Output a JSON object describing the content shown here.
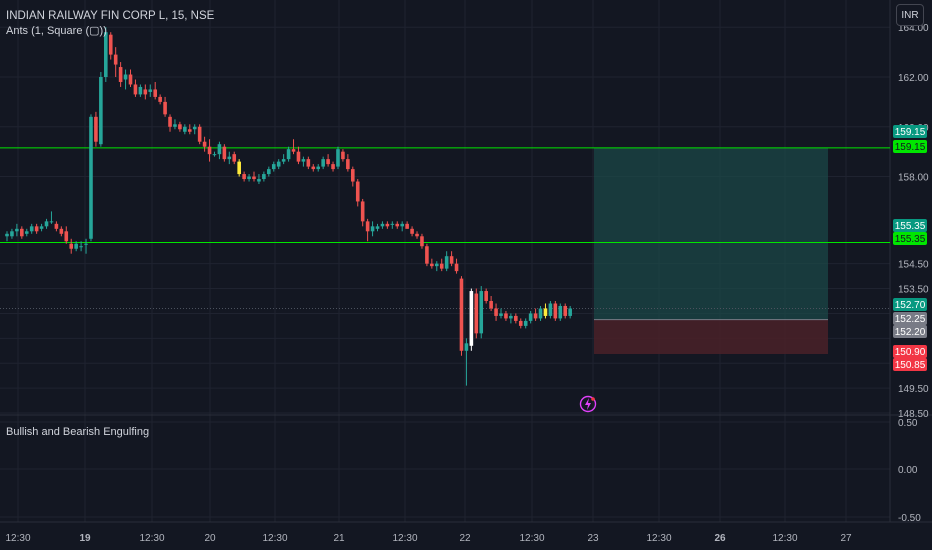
{
  "header": {
    "symbol_title": "INDIAN RAILWAY FIN CORP L, 15, NSE",
    "indicator_label": "Ants (1, Square (▢))",
    "currency_button": "INR"
  },
  "lower_pane": {
    "indicator_name": "Bullish and Bearish Engulfing",
    "axis_ticks": [
      "0.50",
      "0.00",
      "-0.50"
    ]
  },
  "price_axis": {
    "ticks": [
      "162.00",
      "160.00",
      "158.00",
      "154.50",
      "153.50",
      "149.50",
      "148.50"
    ],
    "top_partial_tick": "164.00"
  },
  "price_labels": [
    {
      "text": "159.15",
      "color": "#089981"
    },
    {
      "text": "159.15",
      "color": "#00e600"
    },
    {
      "text": "155.35",
      "color": "#089981"
    },
    {
      "text": "155.35",
      "color": "#00e600"
    },
    {
      "text": "152.70",
      "color": "#089981"
    },
    {
      "text": "152.25",
      "color": "#787b86"
    },
    {
      "text": "152.20",
      "color": "#787b86"
    },
    {
      "text": "150.90",
      "color": "#f23645"
    },
    {
      "text": "150.85",
      "color": "#f23645"
    }
  ],
  "time_axis": {
    "labels": [
      {
        "text": "12:30",
        "bold": false
      },
      {
        "text": "19",
        "bold": true
      },
      {
        "text": "12:30",
        "bold": false
      },
      {
        "text": "20",
        "bold": false
      },
      {
        "text": "12:30",
        "bold": false
      },
      {
        "text": "21",
        "bold": false
      },
      {
        "text": "12:30",
        "bold": false
      },
      {
        "text": "22",
        "bold": false
      },
      {
        "text": "12:30",
        "bold": false
      },
      {
        "text": "23",
        "bold": false
      },
      {
        "text": "12:30",
        "bold": false
      },
      {
        "text": "26",
        "bold": true
      },
      {
        "text": "12:30",
        "bold": false
      },
      {
        "text": "27",
        "bold": false
      }
    ]
  },
  "horizontal_lines": [
    159.15,
    155.35
  ],
  "position_tool": {
    "entry": 152.25,
    "target": 159.15,
    "stop": 150.87
  },
  "colors": {
    "background": "#131722",
    "up": "#26a69a",
    "down": "#ef5350",
    "highlight": "#ffeb3b",
    "engulf": "#ffffff",
    "level_line": "#00e600",
    "profit_zone": "#1b4a48",
    "loss_zone": "#4a2128",
    "alert_icon": "#e040fb"
  },
  "icons": {
    "alert": "lightning-alert-icon"
  },
  "candles": [
    [
      155.6,
      155.8,
      155.4,
      155.7
    ],
    [
      155.6,
      155.9,
      155.5,
      155.8
    ],
    [
      155.8,
      156.1,
      155.6,
      155.9
    ],
    [
      155.9,
      156.0,
      155.5,
      155.6
    ],
    [
      155.7,
      155.9,
      155.6,
      155.8
    ],
    [
      155.8,
      156.1,
      155.7,
      156.0
    ],
    [
      156.0,
      156.1,
      155.7,
      155.8
    ],
    [
      155.9,
      156.1,
      155.8,
      156.0
    ],
    [
      156.0,
      156.3,
      155.9,
      156.2
    ],
    [
      156.2,
      156.6,
      156.1,
      156.2
    ],
    [
      156.1,
      156.2,
      155.8,
      155.9
    ],
    [
      155.9,
      156.0,
      155.6,
      155.7
    ],
    [
      155.8,
      156.0,
      155.3,
      155.4
    ],
    [
      155.3,
      155.5,
      154.9,
      155.1
    ],
    [
      155.1,
      155.4,
      155.0,
      155.3
    ],
    [
      155.2,
      155.4,
      155.0,
      155.2
    ],
    [
      155.3,
      155.5,
      154.9,
      155.3
    ],
    [
      155.5,
      160.5,
      155.4,
      160.4
    ],
    [
      160.4,
      160.6,
      159.2,
      159.4
    ],
    [
      159.3,
      162.2,
      159.2,
      162.0
    ],
    [
      162.0,
      164.0,
      161.8,
      163.8
    ],
    [
      163.7,
      163.8,
      162.7,
      162.9
    ],
    [
      162.9,
      163.2,
      162.0,
      162.5
    ],
    [
      162.4,
      162.6,
      161.6,
      161.8
    ],
    [
      161.9,
      162.3,
      161.5,
      162.1
    ],
    [
      162.1,
      162.3,
      161.6,
      161.7
    ],
    [
      161.7,
      161.9,
      161.2,
      161.3
    ],
    [
      161.3,
      161.7,
      161.2,
      161.6
    ],
    [
      161.5,
      161.7,
      161.1,
      161.3
    ],
    [
      161.4,
      161.7,
      161.2,
      161.5
    ],
    [
      161.5,
      161.8,
      161.1,
      161.2
    ],
    [
      161.2,
      161.3,
      160.9,
      161.0
    ],
    [
      161.0,
      161.2,
      160.4,
      160.5
    ],
    [
      160.4,
      160.5,
      159.8,
      160.0
    ],
    [
      160.0,
      160.3,
      159.9,
      160.1
    ],
    [
      160.1,
      160.2,
      159.8,
      159.9
    ],
    [
      159.8,
      160.1,
      159.7,
      160.0
    ],
    [
      159.9,
      160.1,
      159.7,
      159.8
    ],
    [
      159.9,
      160.1,
      159.7,
      160.0
    ],
    [
      160.0,
      160.1,
      159.3,
      159.4
    ],
    [
      159.4,
      159.6,
      159.0,
      159.2
    ],
    [
      159.2,
      159.5,
      158.6,
      158.9
    ],
    [
      158.9,
      159.0,
      158.8,
      158.9
    ],
    [
      158.9,
      159.4,
      158.7,
      159.3
    ],
    [
      159.2,
      159.3,
      158.6,
      158.7
    ],
    [
      158.7,
      159.0,
      158.5,
      158.8
    ],
    [
      158.9,
      159.0,
      158.5,
      158.6
    ],
    [
      158.6,
      158.7,
      158.0,
      158.1
    ],
    [
      158.1,
      158.2,
      157.8,
      157.9
    ],
    [
      157.9,
      158.1,
      157.8,
      158.0
    ],
    [
      158.0,
      158.2,
      157.8,
      157.9
    ],
    [
      157.8,
      158.1,
      157.7,
      157.9
    ],
    [
      157.9,
      158.2,
      157.8,
      158.1
    ],
    [
      158.1,
      158.4,
      158.0,
      158.3
    ],
    [
      158.3,
      158.6,
      158.2,
      158.5
    ],
    [
      158.4,
      158.7,
      158.3,
      158.6
    ],
    [
      158.6,
      158.9,
      158.5,
      158.7
    ],
    [
      158.7,
      159.2,
      158.6,
      159.1
    ],
    [
      159.1,
      159.5,
      158.9,
      159.0
    ],
    [
      159.0,
      159.2,
      158.5,
      158.6
    ],
    [
      158.6,
      158.8,
      158.4,
      158.7
    ],
    [
      158.7,
      158.8,
      158.3,
      158.4
    ],
    [
      158.4,
      158.5,
      158.2,
      158.3
    ],
    [
      158.3,
      158.5,
      158.2,
      158.4
    ],
    [
      158.4,
      158.8,
      158.3,
      158.7
    ],
    [
      158.7,
      158.9,
      158.4,
      158.5
    ],
    [
      158.5,
      158.6,
      158.2,
      158.3
    ],
    [
      158.4,
      159.2,
      158.3,
      159.1
    ],
    [
      159.0,
      159.1,
      158.6,
      158.7
    ],
    [
      158.7,
      158.9,
      158.2,
      158.3
    ],
    [
      158.3,
      158.4,
      157.6,
      157.8
    ],
    [
      157.8,
      157.9,
      156.8,
      157.0
    ],
    [
      157.0,
      157.1,
      156.0,
      156.2
    ],
    [
      156.2,
      156.3,
      155.4,
      155.8
    ],
    [
      155.8,
      156.2,
      155.6,
      156.0
    ],
    [
      155.9,
      156.1,
      155.8,
      156.0
    ],
    [
      156.0,
      156.2,
      155.9,
      156.1
    ],
    [
      156.1,
      156.2,
      155.9,
      156.0
    ],
    [
      156.1,
      156.2,
      155.9,
      156.1
    ],
    [
      156.1,
      156.2,
      155.9,
      156.0
    ],
    [
      156.0,
      156.2,
      155.8,
      156.1
    ],
    [
      156.1,
      156.2,
      155.9,
      155.9
    ],
    [
      155.9,
      156.0,
      155.6,
      155.7
    ],
    [
      155.7,
      155.8,
      155.5,
      155.6
    ],
    [
      155.6,
      155.7,
      155.1,
      155.2
    ],
    [
      155.2,
      155.3,
      154.4,
      154.5
    ],
    [
      154.5,
      154.7,
      154.3,
      154.4
    ],
    [
      154.4,
      154.6,
      154.2,
      154.5
    ],
    [
      154.5,
      154.7,
      154.2,
      154.3
    ],
    [
      154.3,
      155.0,
      154.2,
      154.8
    ],
    [
      154.8,
      155.0,
      154.4,
      154.5
    ],
    [
      154.5,
      154.7,
      154.1,
      154.2
    ],
    [
      153.9,
      154.0,
      150.8,
      151.0
    ],
    [
      151.0,
      151.5,
      149.6,
      151.3
    ],
    [
      151.2,
      153.5,
      151.0,
      153.4
    ],
    [
      153.3,
      153.5,
      151.5,
      151.7
    ],
    [
      151.7,
      153.6,
      151.5,
      153.4
    ],
    [
      153.4,
      153.5,
      152.9,
      153.0
    ],
    [
      153.0,
      153.2,
      152.6,
      152.7
    ],
    [
      152.7,
      152.9,
      152.2,
      152.4
    ],
    [
      152.4,
      152.7,
      152.3,
      152.5
    ],
    [
      152.5,
      152.6,
      152.2,
      152.3
    ],
    [
      152.3,
      152.5,
      152.1,
      152.4
    ],
    [
      152.4,
      152.5,
      152.1,
      152.2
    ],
    [
      152.2,
      152.3,
      151.9,
      152.0
    ],
    [
      152.0,
      152.3,
      151.9,
      152.2
    ],
    [
      152.2,
      152.6,
      152.1,
      152.5
    ],
    [
      152.5,
      152.7,
      152.2,
      152.3
    ],
    [
      152.3,
      152.8,
      152.2,
      152.7
    ],
    [
      152.7,
      152.9,
      152.3,
      152.4
    ],
    [
      152.4,
      153.0,
      152.3,
      152.9
    ],
    [
      152.9,
      153.0,
      152.2,
      152.3
    ],
    [
      152.3,
      152.9,
      152.2,
      152.8
    ],
    [
      152.8,
      152.9,
      152.3,
      152.4
    ],
    [
      152.4,
      152.8,
      152.3,
      152.7
    ]
  ],
  "highlight_indices": [
    47,
    109
  ],
  "engulf_indices": [
    94
  ]
}
